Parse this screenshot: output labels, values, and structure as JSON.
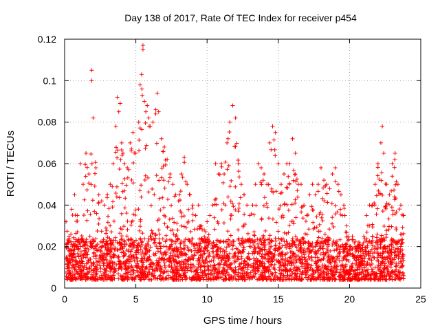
{
  "chart_data": {
    "type": "scatter",
    "title": "Day 138 of 2017, Rate Of TEC Index for receiver p454",
    "xlabel": "GPS time / hours",
    "ylabel": "ROTI / TECUs",
    "xlim": [
      0,
      25
    ],
    "ylim": [
      0,
      0.12
    ],
    "xticks": [
      0,
      5,
      10,
      15,
      20,
      25
    ],
    "xtick_labels": [
      "0",
      "5",
      "10",
      "15",
      "20",
      "25"
    ],
    "yticks": [
      0,
      0.02,
      0.04,
      0.06,
      0.08,
      0.1,
      0.12
    ],
    "ytick_labels": [
      "0",
      "0.02",
      "0.04",
      "0.06",
      "0.08",
      "0.1",
      "0.12"
    ],
    "grid": true,
    "marker": "+",
    "color": "#ff0000",
    "series": [
      {
        "name": "ROTI",
        "description_of_coverage": "dense points from 0 to ~23.8 hours",
        "x": [
          0.1,
          0.3,
          0.5,
          0.7,
          0.9,
          1.1,
          1.3,
          1.5,
          1.7,
          1.9,
          1.9,
          2.0,
          2.2,
          2.4,
          2.6,
          2.8,
          3.0,
          3.2,
          3.4,
          3.6,
          3.7,
          3.8,
          3.9,
          4.0,
          4.1,
          4.2,
          4.4,
          4.6,
          4.8,
          5.0,
          5.2,
          5.3,
          5.4,
          5.5,
          5.5,
          5.6,
          5.7,
          5.8,
          5.9,
          6.0,
          6.2,
          6.4,
          6.5,
          6.6,
          6.8,
          7.0,
          7.2,
          7.4,
          7.6,
          7.8,
          8.0,
          8.2,
          8.4,
          8.6,
          8.8,
          9.0,
          9.2,
          9.4,
          9.6,
          9.8,
          10.0,
          10.2,
          10.4,
          10.6,
          10.8,
          11.0,
          11.2,
          11.4,
          11.6,
          11.8,
          12.0,
          12.2,
          12.4,
          12.6,
          12.8,
          13.0,
          13.2,
          13.4,
          13.6,
          13.8,
          14.0,
          14.2,
          14.4,
          14.6,
          14.8,
          15.0,
          15.2,
          15.4,
          15.6,
          15.8,
          16.0,
          16.2,
          16.4,
          16.6,
          16.8,
          17.0,
          17.2,
          17.4,
          17.6,
          17.8,
          18.0,
          18.2,
          18.4,
          18.6,
          18.8,
          19.0,
          19.2,
          19.4,
          19.6,
          19.8,
          20.0,
          20.2,
          20.4,
          20.6,
          20.8,
          21.0,
          21.2,
          21.4,
          21.6,
          21.8,
          22.0,
          22.2,
          22.3,
          22.4,
          22.6,
          22.8,
          23.0,
          23.2,
          23.4,
          23.6,
          23.8
        ],
        "y": [
          0.032,
          0.025,
          0.038,
          0.045,
          0.035,
          0.06,
          0.05,
          0.065,
          0.055,
          0.1,
          0.105,
          0.082,
          0.058,
          0.045,
          0.042,
          0.04,
          0.045,
          0.05,
          0.06,
          0.078,
          0.092,
          0.085,
          0.089,
          0.07,
          0.065,
          0.06,
          0.058,
          0.07,
          0.075,
          0.065,
          0.08,
          0.098,
          0.103,
          0.117,
          0.115,
          0.09,
          0.085,
          0.088,
          0.082,
          0.078,
          0.08,
          0.086,
          0.094,
          0.085,
          0.072,
          0.068,
          0.062,
          0.055,
          0.05,
          0.045,
          0.042,
          0.055,
          0.063,
          0.05,
          0.045,
          0.04,
          0.035,
          0.04,
          0.03,
          0.028,
          0.032,
          0.035,
          0.04,
          0.06,
          0.055,
          0.06,
          0.055,
          0.07,
          0.08,
          0.088,
          0.082,
          0.06,
          0.05,
          0.045,
          0.04,
          0.035,
          0.04,
          0.05,
          0.06,
          0.058,
          0.055,
          0.05,
          0.07,
          0.078,
          0.075,
          0.06,
          0.05,
          0.055,
          0.06,
          0.06,
          0.072,
          0.065,
          0.05,
          0.05,
          0.04,
          0.035,
          0.045,
          0.05,
          0.045,
          0.05,
          0.058,
          0.052,
          0.05,
          0.048,
          0.055,
          0.058,
          0.05,
          0.045,
          0.04,
          0.03,
          0.02,
          0.025,
          0.02,
          0.02,
          0.015,
          0.025,
          0.035,
          0.04,
          0.04,
          0.05,
          0.06,
          0.07,
          0.078,
          0.065,
          0.05,
          0.045,
          0.06,
          0.065,
          0.05,
          0.04,
          0.035
        ]
      }
    ]
  }
}
